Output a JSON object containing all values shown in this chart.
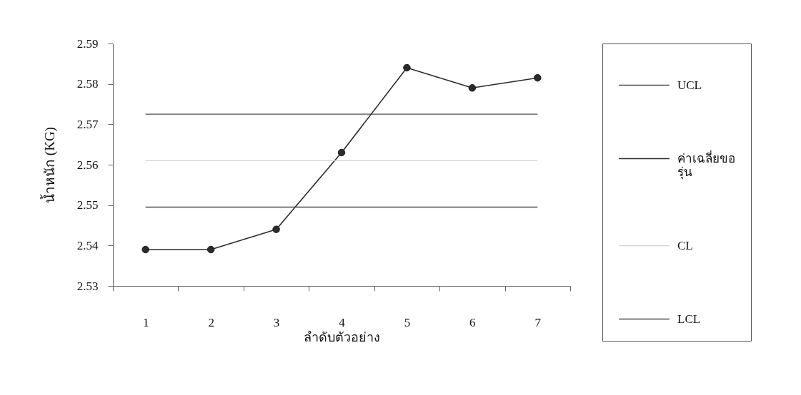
{
  "chart_data": {
    "type": "line",
    "xlabel": "ลำดับตัวอย่าง",
    "ylabel": "น้ำหนัก (KG)",
    "categories": [
      "1",
      "2",
      "3",
      "4",
      "5",
      "6",
      "7"
    ],
    "series": [
      {
        "name": "UCL",
        "color": "#4d4d4d",
        "values": [
          2.5725,
          2.5725,
          2.5725,
          2.5725,
          2.5725,
          2.5725,
          2.5725
        ]
      },
      {
        "name": "ค่าเฉลี่ยขอ\nรุ่น",
        "color": "#2b2b2b",
        "marker": "circle",
        "values": [
          2.539,
          2.539,
          2.544,
          2.563,
          2.584,
          2.579,
          2.5815
        ]
      },
      {
        "name": "CL",
        "color": "#d4d4d4",
        "values": [
          2.561,
          2.561,
          2.561,
          2.561,
          2.561,
          2.561,
          2.561
        ]
      },
      {
        "name": "LCL",
        "color": "#4d4d4d",
        "values": [
          2.5495,
          2.5495,
          2.5495,
          2.5495,
          2.5495,
          2.5495,
          2.5495
        ]
      }
    ],
    "ylim": [
      2.53,
      2.59
    ],
    "yticks": [
      2.53,
      2.54,
      2.55,
      2.56,
      2.57,
      2.58,
      2.59
    ],
    "grid": false,
    "legend": "right"
  }
}
